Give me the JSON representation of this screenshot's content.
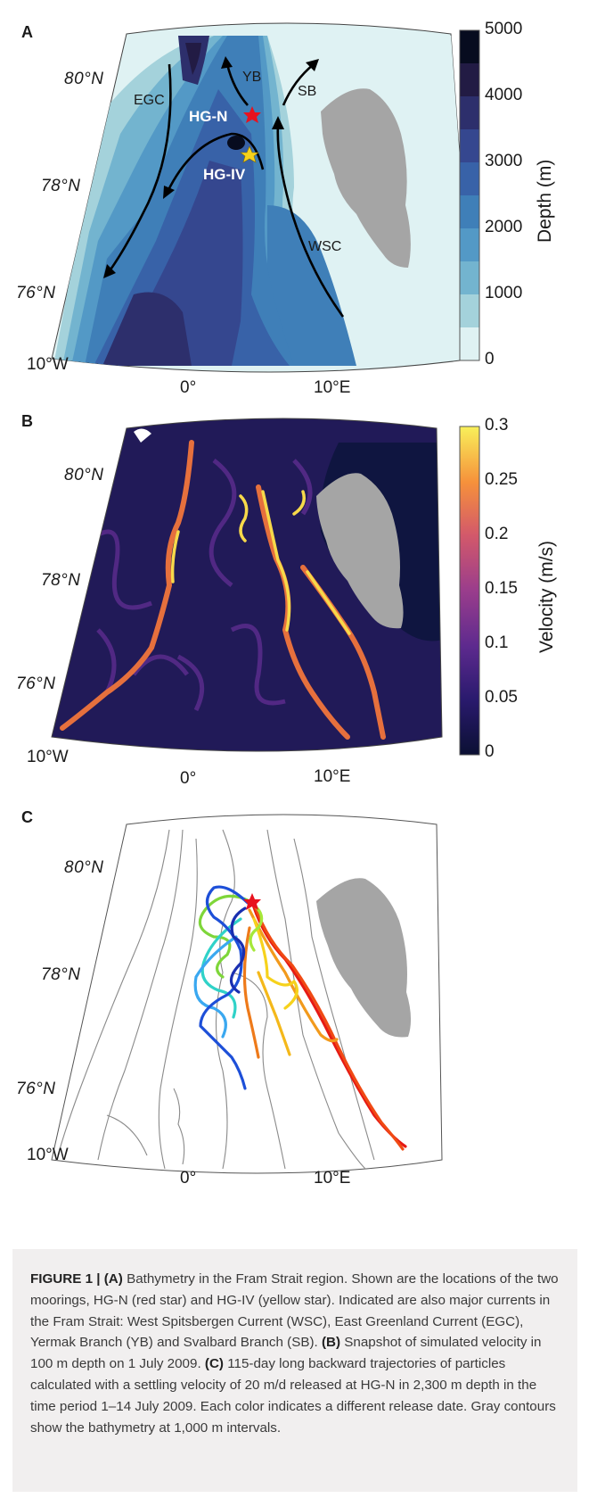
{
  "panels": {
    "a": {
      "letter": "A",
      "lat_labels": [
        "80°N",
        "78°N",
        "76°N"
      ],
      "lon_labels": [
        "10°W",
        "0°",
        "10°E"
      ],
      "current_labels": [
        "EGC",
        "YB",
        "SB",
        "WSC"
      ],
      "mooring_labels": [
        "HG-N",
        "HG-IV"
      ],
      "colorbar": {
        "title": "Depth (m)",
        "ticks": [
          "5000",
          "4000",
          "3000",
          "2000",
          "1000",
          "0"
        ],
        "colors": [
          "#070c1f",
          "#221b44",
          "#2d2f6c",
          "#35478f",
          "#3862a8",
          "#3f7fb8",
          "#5399c6",
          "#73b4cf",
          "#a4d2db",
          "#dff2f3"
        ]
      }
    },
    "b": {
      "letter": "B",
      "lat_labels": [
        "80°N",
        "78°N",
        "76°N"
      ],
      "lon_labels": [
        "10°W",
        "0°",
        "10°E"
      ],
      "colorbar": {
        "title": "Velocity (m/s)",
        "ticks": [
          "0.3",
          "0.25",
          "0.2",
          "0.15",
          "0.1",
          "0.05",
          "0"
        ]
      }
    },
    "c": {
      "letter": "C",
      "lat_labels": [
        "80°N",
        "78°N",
        "76°N"
      ],
      "lon_labels": [
        "10°W",
        "0°",
        "10°E"
      ]
    }
  },
  "caption": {
    "label": "FIGURE 1 |",
    "a_tag": "(A)",
    "a_text": " Bathymetry in the Fram Strait region. Shown are the locations of the two moorings, HG-N (red star) and HG-IV (yellow star). Indicated are also major currents in the Fram Strait: West Spitsbergen Current (WSC), East Greenland Current (EGC), Yermak Branch (YB) and Svalbard Branch (SB). ",
    "b_tag": "(B)",
    "b_text": " Snapshot of simulated velocity in 100 m depth on 1 July 2009. ",
    "c_tag": "(C)",
    "c_text": " 115-day long backward trajectories of particles calculated with a settling velocity of 20 m/d released at HG-N in 2,300 m depth in the time period 1–14 July 2009. Each color indicates a different release date. Gray contours show the bathymetry at 1,000 m intervals."
  }
}
